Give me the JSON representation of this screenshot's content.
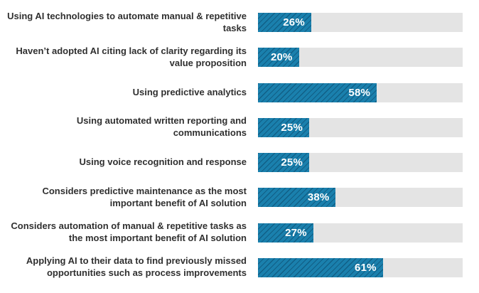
{
  "chart_data": {
    "type": "bar",
    "orientation": "horizontal",
    "title": "",
    "xlabel": "",
    "ylabel": "",
    "xlim": [
      0,
      100
    ],
    "grid": false,
    "legend_position": "none",
    "categories": [
      "Using AI technologies to automate manual & repetitive tasks",
      "Haven’t adopted AI citing lack of clarity regarding its value proposition",
      "Using predictive analytics",
      "Using automated written reporting and communications",
      "Using voice recognition and response",
      "Considers predictive maintenance as the most important benefit of AI solution",
      "Considers automation of manual & repetitive tasks as the most important benefit of AI solution",
      "Applying AI to their data to find previously missed opportunities such as process improvements"
    ],
    "values": [
      26,
      20,
      58,
      25,
      25,
      38,
      27,
      61
    ],
    "value_labels": [
      "26%",
      "20%",
      "58%",
      "25%",
      "25%",
      "38%",
      "27%",
      "61%"
    ],
    "colors": {
      "bar_fill": "#1a80ad",
      "bar_hatch": "#0d567e",
      "track": "#e4e4e4",
      "label_text": "#303030",
      "value_text": "#ffffff"
    }
  }
}
